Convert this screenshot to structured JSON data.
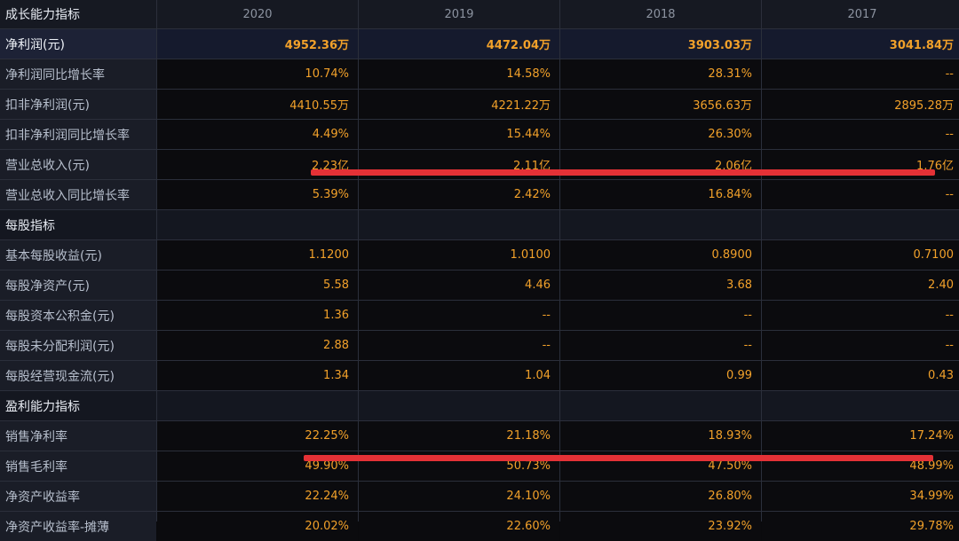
{
  "table": {
    "header": {
      "label": "成长能力指标",
      "years": [
        "2020",
        "2019",
        "2018",
        "2017"
      ]
    },
    "rows": [
      {
        "label": "净利润(元)",
        "values": [
          "4952.36万",
          "4472.04万",
          "3903.03万",
          "3041.84万"
        ],
        "highlight": true
      },
      {
        "label": "净利润同比增长率",
        "values": [
          "10.74%",
          "14.58%",
          "28.31%",
          "--"
        ]
      },
      {
        "label": "扣非净利润(元)",
        "values": [
          "4410.55万",
          "4221.22万",
          "3656.63万",
          "2895.28万"
        ]
      },
      {
        "label": "扣非净利润同比增长率",
        "values": [
          "4.49%",
          "15.44%",
          "26.30%",
          "--"
        ]
      },
      {
        "label": "营业总收入(元)",
        "values": [
          "2.23亿",
          "2.11亿",
          "2.06亿",
          "1.76亿"
        ]
      },
      {
        "label": "营业总收入同比增长率",
        "values": [
          "5.39%",
          "2.42%",
          "16.84%",
          "--"
        ]
      },
      {
        "label": "每股指标",
        "section": true,
        "values": [
          "",
          "",
          "",
          ""
        ]
      },
      {
        "label": "基本每股收益(元)",
        "values": [
          "1.1200",
          "1.0100",
          "0.8900",
          "0.7100"
        ]
      },
      {
        "label": "每股净资产(元)",
        "values": [
          "5.58",
          "4.46",
          "3.68",
          "2.40"
        ]
      },
      {
        "label": "每股资本公积金(元)",
        "values": [
          "1.36",
          "--",
          "--",
          "--"
        ]
      },
      {
        "label": "每股未分配利润(元)",
        "values": [
          "2.88",
          "--",
          "--",
          "--"
        ]
      },
      {
        "label": "每股经营现金流(元)",
        "values": [
          "1.34",
          "1.04",
          "0.99",
          "0.43"
        ]
      },
      {
        "label": "盈利能力指标",
        "section": true,
        "values": [
          "",
          "",
          "",
          ""
        ]
      },
      {
        "label": "销售净利率",
        "values": [
          "22.25%",
          "21.18%",
          "18.93%",
          "17.24%"
        ]
      },
      {
        "label": "销售毛利率",
        "values": [
          "49.90%",
          "50.73%",
          "47.50%",
          "48.99%"
        ]
      },
      {
        "label": "净资产收益率",
        "values": [
          "22.24%",
          "24.10%",
          "26.80%",
          "34.99%"
        ]
      },
      {
        "label": "净资产收益率-摊薄",
        "values": [
          "20.02%",
          "22.60%",
          "23.92%",
          "29.78%"
        ]
      }
    ]
  },
  "colors": {
    "value": "#f2a12a",
    "label": "#b7bfcd",
    "annotation_line": "#e43136"
  }
}
